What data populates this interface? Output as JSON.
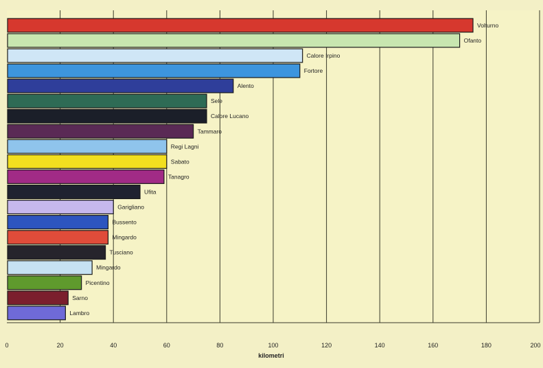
{
  "chart_data": {
    "type": "bar",
    "orientation": "horizontal",
    "categories": [
      "Volturno",
      "Ofanto",
      "Calore Irpino",
      "Fortore",
      "Alento",
      "Sele",
      "Calore Lucano",
      "Tammaro",
      "Regi Lagni",
      "Sabato",
      "Tanagro",
      "Ufita",
      "Garigliano",
      "Bussento",
      "Mingardo",
      "Tusciano",
      "Mingardo",
      "Picentino",
      "Sarno",
      "Lambro"
    ],
    "bar_labels": [
      "Volturno",
      "Ofanto",
      "Calore Irpino",
      "Fortore",
      "Alento",
      "Sele",
      "Calore Lucano",
      "Tammaro",
      "Regi Lagni",
      "Sabato",
      "Tanagro",
      "Ufita",
      "Garigliano",
      "Bussento",
      "Mingardo",
      "Tusciano",
      "Mingardo",
      "Picentino",
      "Sarno",
      "Lambro"
    ],
    "values": [
      175,
      170,
      111,
      110,
      85,
      75,
      75,
      70,
      60,
      60,
      59,
      50,
      40,
      38,
      38,
      37,
      32,
      28,
      23,
      22
    ],
    "colors": [
      "#d6382e",
      "#c8e6b0",
      "#cfe6f6",
      "#3d95de",
      "#2f3e9a",
      "#2e6b55",
      "#1b1f29",
      "#5a2a55",
      "#8fc4ec",
      "#f2df1f",
      "#a12b86",
      "#1f2230",
      "#c6b8ec",
      "#2d55bf",
      "#e04c3a",
      "#26242c",
      "#c6e2f2",
      "#5f9a2d",
      "#7b1f2d",
      "#6f6ad8"
    ],
    "xlabel": "kilometri",
    "xlim": [
      0,
      200
    ],
    "xticks": [
      0,
      20,
      40,
      60,
      80,
      100,
      120,
      140,
      160,
      180,
      200
    ],
    "ylabel": "",
    "grid": "vertical",
    "legend": "none",
    "background_color": "#f3f0c6",
    "grid_color": "#3a3a2a",
    "title": ""
  }
}
